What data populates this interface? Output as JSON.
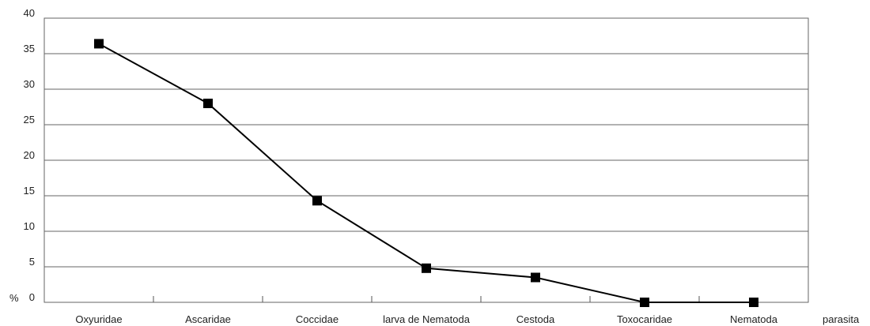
{
  "chart_data": {
    "type": "line",
    "categories": [
      "Oxyuridae",
      "Ascaridae",
      "Coccidae",
      "larva de Nematoda",
      "Cestoda",
      "Toxocaridae",
      "Nematoda"
    ],
    "series": [
      {
        "values": [
          36.4,
          28.0,
          14.3,
          4.8,
          3.5,
          0.0,
          0.0
        ]
      }
    ],
    "y_ticks": [
      "0",
      "5",
      "10",
      "15",
      "20",
      "25",
      "30",
      "35",
      "40"
    ],
    "ylim": [
      0,
      40
    ],
    "ylabel": "%",
    "xlabel": "parasita",
    "grid": true,
    "marker": "square",
    "line_color": "#000000",
    "grid_color": "#666666"
  }
}
